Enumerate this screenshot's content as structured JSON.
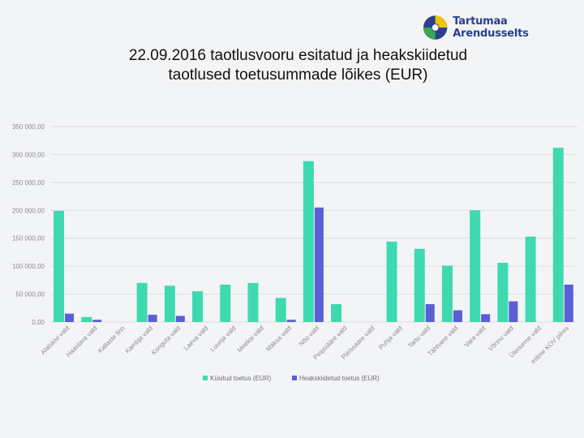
{
  "logo": {
    "text": "Tartumaa Arendusselts",
    "icon": "circle-logo-icon"
  },
  "title": {
    "line1": "22.09.2016 taotlusvooru esitatud ja heakskiidetud",
    "line2": "taotlused toetusummade lõikes (EUR)"
  },
  "colors": {
    "submitted": "#3fd9b0",
    "approved": "#5a5fd6"
  },
  "chart_data": {
    "type": "bar",
    "categories": [
      "Alatskivi vald",
      "Haaslava vald",
      "Kallaste linn",
      "Kambja vald",
      "Konguta vald",
      "Laeva vald",
      "Luunja vald",
      "Meeksi vald",
      "Mäksa vald",
      "Nõo vald",
      "Peipsiääre vald",
      "Piirissaare vald",
      "Puhja vald",
      "Tartu vald",
      "Tähtvere vald",
      "Vara vald",
      "Võnnu vald",
      "Ülenurme vald",
      "mitme KOV piires"
    ],
    "series": [
      {
        "name": "Küsitud toetus (EUR)",
        "values": [
          199000,
          9000,
          0,
          70000,
          65000,
          55000,
          67000,
          70000,
          43000,
          288000,
          32000,
          0,
          144000,
          131000,
          101000,
          200000,
          106000,
          153000,
          312000
        ]
      },
      {
        "name": "Heakskiidetud toetus (EUR)",
        "values": [
          15000,
          4000,
          0,
          13000,
          11000,
          0,
          0,
          0,
          4000,
          205000,
          0,
          0,
          0,
          32000,
          21000,
          14000,
          37000,
          0,
          67000
        ]
      }
    ],
    "yticks": [
      "0,00",
      "50 000,00",
      "100 000,00",
      "150 000,00",
      "200 000,00",
      "250 000,00",
      "300 000,00",
      "350 000,00"
    ],
    "ylim": [
      0,
      350000
    ],
    "grid": true,
    "legend": "bottom"
  }
}
